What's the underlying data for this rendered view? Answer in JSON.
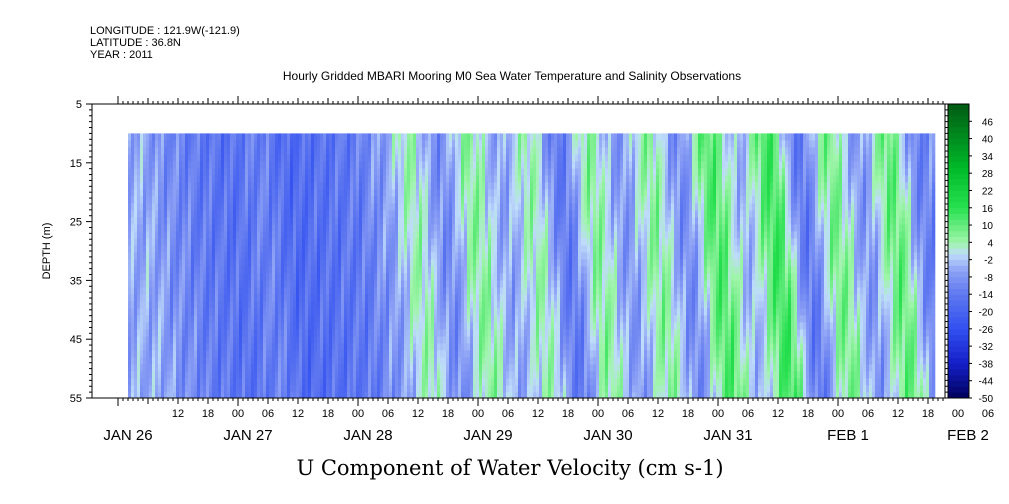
{
  "header": {
    "longitude": "LONGITUDE : 121.9W(-121.9)",
    "latitude": "LATITUDE : 36.8N",
    "year": "YEAR : 2011"
  },
  "chart_data": {
    "type": "heatmap",
    "title": "Hourly Gridded MBARI Mooring M0 Sea Water Temperature and Salinity Observations",
    "xlabel": "U Component of Water Velocity (cm s-1)",
    "ylabel": "DEPTH (m)",
    "ylim": [
      55,
      5
    ],
    "yticks": [
      "5",
      "15",
      "25",
      "35",
      "45",
      "55"
    ],
    "xticks_hours": [
      "12",
      "18",
      "00",
      "06",
      "12",
      "18",
      "00",
      "06",
      "12",
      "18",
      "00",
      "06",
      "12",
      "18",
      "00",
      "06",
      "12",
      "18",
      "00",
      "06",
      "12",
      "18",
      "00",
      "06",
      "12",
      "18",
      "00",
      "06",
      "12",
      "18",
      "00",
      "06"
    ],
    "xdates": [
      "JAN 26",
      "JAN 27",
      "JAN 28",
      "JAN 29",
      "JAN 30",
      "JAN 31",
      "FEB  1",
      "FEB  2"
    ],
    "colorbar_ticks": [
      "46",
      "40",
      "34",
      "28",
      "22",
      "16",
      "10",
      "4",
      "-2",
      "-8",
      "-14",
      "-20",
      "-26",
      "-32",
      "-38",
      "-44",
      "-50"
    ],
    "color_range": [
      -50,
      52
    ],
    "colors": {
      "positive": "#00e020",
      "negative": "#3c5cff",
      "near_zero": "#bfe0ff"
    },
    "data_depth_range": [
      10,
      55
    ],
    "time_profile_cm_s": [
      {
        "t": "JAN 26 06",
        "u": -5
      },
      {
        "t": "JAN 26 12",
        "u": -10
      },
      {
        "t": "JAN 26 18",
        "u": -14
      },
      {
        "t": "JAN 27 00",
        "u": -16
      },
      {
        "t": "JAN 27 06",
        "u": -12
      },
      {
        "t": "JAN 27 12",
        "u": -18
      },
      {
        "t": "JAN 27 18",
        "u": -16
      },
      {
        "t": "JAN 28 00",
        "u": -14
      },
      {
        "t": "JAN 28 06",
        "u": -8
      },
      {
        "t": "JAN 28 12",
        "u": 4
      },
      {
        "t": "JAN 28 18",
        "u": -10
      },
      {
        "t": "JAN 29 00",
        "u": 6
      },
      {
        "t": "JAN 29 06",
        "u": -6
      },
      {
        "t": "JAN 29 12",
        "u": 4
      },
      {
        "t": "JAN 29 18",
        "u": -14
      },
      {
        "t": "JAN 30 00",
        "u": 6
      },
      {
        "t": "JAN 30 06",
        "u": -8
      },
      {
        "t": "JAN 30 12",
        "u": 6
      },
      {
        "t": "JAN 30 18",
        "u": -10
      },
      {
        "t": "JAN 31 00",
        "u": 12
      },
      {
        "t": "JAN 31 06",
        "u": -4
      },
      {
        "t": "JAN 31 12",
        "u": 14
      },
      {
        "t": "JAN 31 18",
        "u": -14
      },
      {
        "t": "FEB 1 00",
        "u": 8
      },
      {
        "t": "FEB 1 06",
        "u": -8
      },
      {
        "t": "FEB 1 12",
        "u": 10
      },
      {
        "t": "FEB 1 18",
        "u": -12
      },
      {
        "t": "FEB 2 00",
        "u": -6
      },
      {
        "t": "FEB 2 06",
        "u": 10
      }
    ]
  }
}
